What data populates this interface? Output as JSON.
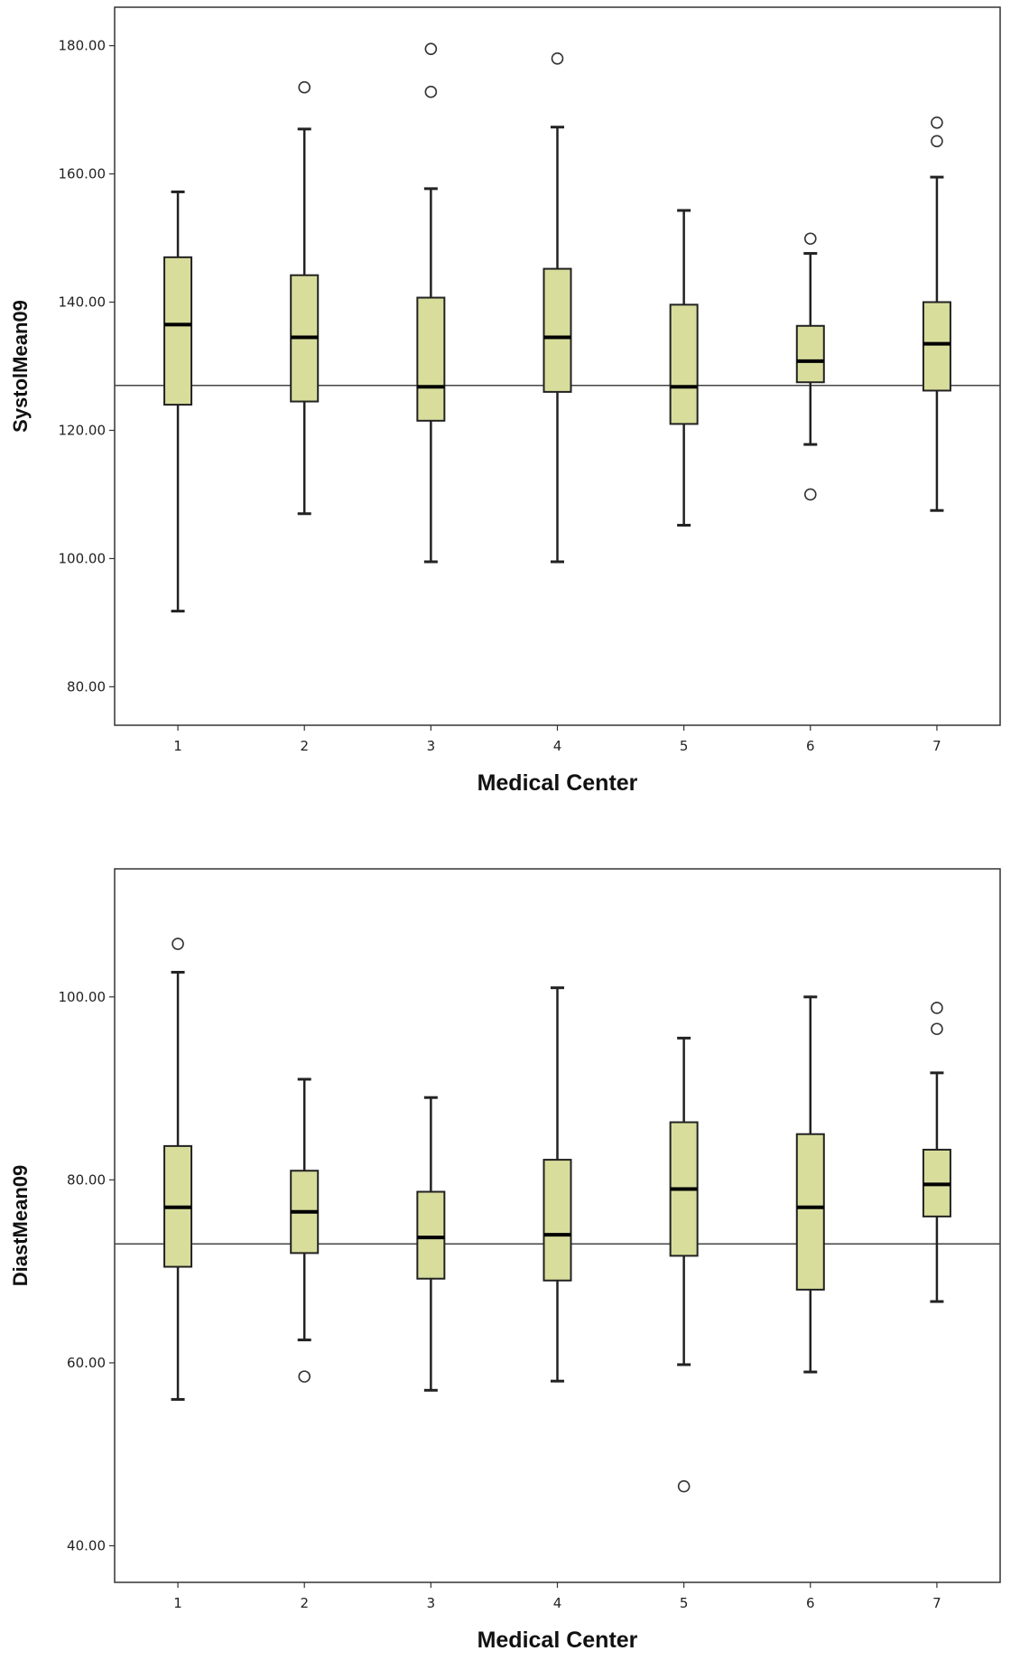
{
  "chart_data": [
    {
      "type": "boxplot",
      "xlabel": "Medical Center",
      "ylabel": "SystolMean09",
      "ylim": [
        74,
        186
      ],
      "yticks": [
        80,
        100,
        120,
        140,
        160,
        180
      ],
      "ytick_labels": [
        "80.00",
        "100.00",
        "120.00",
        "140.00",
        "160.00",
        "180.00"
      ],
      "categories": [
        "1",
        "2",
        "3",
        "4",
        "5",
        "6",
        "7"
      ],
      "reference_line": 127,
      "boxes": [
        {
          "whisker_low": 91.8,
          "q1": 124.0,
          "median": 136.5,
          "q3": 147.0,
          "whisker_high": 157.2,
          "outliers": []
        },
        {
          "whisker_low": 107.0,
          "q1": 124.5,
          "median": 134.5,
          "q3": 144.2,
          "whisker_high": 167.0,
          "outliers": [
            173.5
          ]
        },
        {
          "whisker_low": 99.5,
          "q1": 121.5,
          "median": 126.8,
          "q3": 140.7,
          "whisker_high": 157.7,
          "outliers": [
            179.5,
            172.8
          ]
        },
        {
          "whisker_low": 99.5,
          "q1": 126.0,
          "median": 134.5,
          "q3": 145.2,
          "whisker_high": 167.3,
          "outliers": [
            178.0
          ]
        },
        {
          "whisker_low": 105.2,
          "q1": 121.0,
          "median": 126.8,
          "q3": 139.6,
          "whisker_high": 154.3,
          "outliers": []
        },
        {
          "whisker_low": 117.8,
          "q1": 127.5,
          "median": 130.8,
          "q3": 136.3,
          "whisker_high": 147.6,
          "outliers": [
            149.9,
            110.0
          ]
        },
        {
          "whisker_low": 107.5,
          "q1": 126.2,
          "median": 133.5,
          "q3": 140.0,
          "whisker_high": 159.5,
          "outliers": [
            168.0,
            165.1
          ]
        }
      ]
    },
    {
      "type": "boxplot",
      "xlabel": "Medical Center",
      "ylabel": "DiastMean09",
      "ylim": [
        36,
        114
      ],
      "yticks": [
        40,
        60,
        80,
        100
      ],
      "ytick_labels": [
        "40.00",
        "60.00",
        "80.00",
        "100.00"
      ],
      "categories": [
        "1",
        "2",
        "3",
        "4",
        "5",
        "6",
        "7"
      ],
      "reference_line": 73,
      "boxes": [
        {
          "whisker_low": 56.0,
          "q1": 70.5,
          "median": 77.0,
          "q3": 83.7,
          "whisker_high": 102.7,
          "outliers": [
            105.8
          ]
        },
        {
          "whisker_low": 62.5,
          "q1": 72.0,
          "median": 76.5,
          "q3": 81.0,
          "whisker_high": 91.0,
          "outliers": [
            58.5
          ]
        },
        {
          "whisker_low": 57.0,
          "q1": 69.2,
          "median": 73.7,
          "q3": 78.7,
          "whisker_high": 89.0,
          "outliers": []
        },
        {
          "whisker_low": 58.0,
          "q1": 69.0,
          "median": 74.0,
          "q3": 82.2,
          "whisker_high": 101.0,
          "outliers": []
        },
        {
          "whisker_low": 59.8,
          "q1": 71.7,
          "median": 79.0,
          "q3": 86.3,
          "whisker_high": 95.5,
          "outliers": [
            46.5
          ]
        },
        {
          "whisker_low": 59.0,
          "q1": 68.0,
          "median": 77.0,
          "q3": 85.0,
          "whisker_high": 100.0,
          "outliers": []
        },
        {
          "whisker_low": 66.7,
          "q1": 76.0,
          "median": 79.5,
          "q3": 83.3,
          "whisker_high": 91.7,
          "outliers": [
            98.8,
            96.5
          ]
        }
      ]
    }
  ],
  "colors": {
    "box_fill": "#d8dd9c",
    "box_stroke": "#222222",
    "median": "#000000",
    "frame": "#333333",
    "reference_line": "#444444"
  }
}
